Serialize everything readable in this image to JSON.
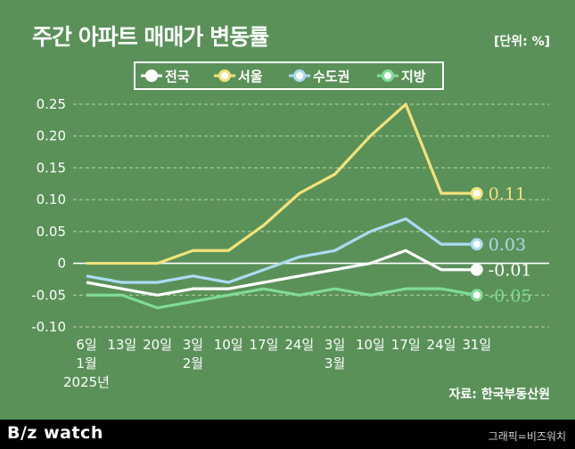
{
  "title": "주간 아파트 매매가 변동률",
  "unit": "[단위: %]",
  "source": "자료: 한국부동산원",
  "footer": {
    "logo": "B/z watch",
    "credit": "그래픽=비즈워치"
  },
  "colors": {
    "background": "#5a9159",
    "national": "#ffffff",
    "seoul": "#f3e27a",
    "metro": "#a9dcf2",
    "regional": "#7fdc96",
    "grid": "#b8d3a8"
  },
  "chart_data": {
    "type": "line",
    "y_ticks": [
      "0.25",
      "0.20",
      "0.15",
      "0.10",
      "0.05",
      "0",
      "-0.05",
      "-0.10"
    ],
    "ylim": [
      -0.1,
      0.25
    ],
    "categories": [
      {
        "day": "6일",
        "month": "1월",
        "year": "2025년"
      },
      {
        "day": "13일"
      },
      {
        "day": "20일"
      },
      {
        "day": "3일",
        "month": "2월"
      },
      {
        "day": "10일"
      },
      {
        "day": "17일"
      },
      {
        "day": "24일"
      },
      {
        "day": "3일",
        "month": "3월"
      },
      {
        "day": "10일"
      },
      {
        "day": "17일"
      },
      {
        "day": "24일"
      },
      {
        "day": "31일"
      }
    ],
    "series": [
      {
        "key": "national",
        "name": "전국",
        "values": [
          -0.03,
          -0.04,
          -0.05,
          -0.04,
          -0.04,
          -0.03,
          -0.02,
          -0.01,
          0.0,
          0.02,
          -0.01,
          -0.01
        ],
        "end_label": "-0.01"
      },
      {
        "key": "seoul",
        "name": "서울",
        "values": [
          0.0,
          0.0,
          0.0,
          0.02,
          0.02,
          0.06,
          0.11,
          0.14,
          0.2,
          0.25,
          0.11,
          0.11
        ],
        "end_label": "0.11"
      },
      {
        "key": "metro",
        "name": "수도권",
        "values": [
          -0.02,
          -0.03,
          -0.03,
          -0.02,
          -0.03,
          -0.01,
          0.01,
          0.02,
          0.05,
          0.07,
          0.03,
          0.03
        ],
        "end_label": "0.03"
      },
      {
        "key": "regional",
        "name": "지방",
        "values": [
          -0.05,
          -0.05,
          -0.07,
          -0.06,
          -0.05,
          -0.04,
          -0.05,
          -0.04,
          -0.05,
          -0.04,
          -0.04,
          -0.05
        ],
        "end_label": "-0.05"
      }
    ]
  }
}
